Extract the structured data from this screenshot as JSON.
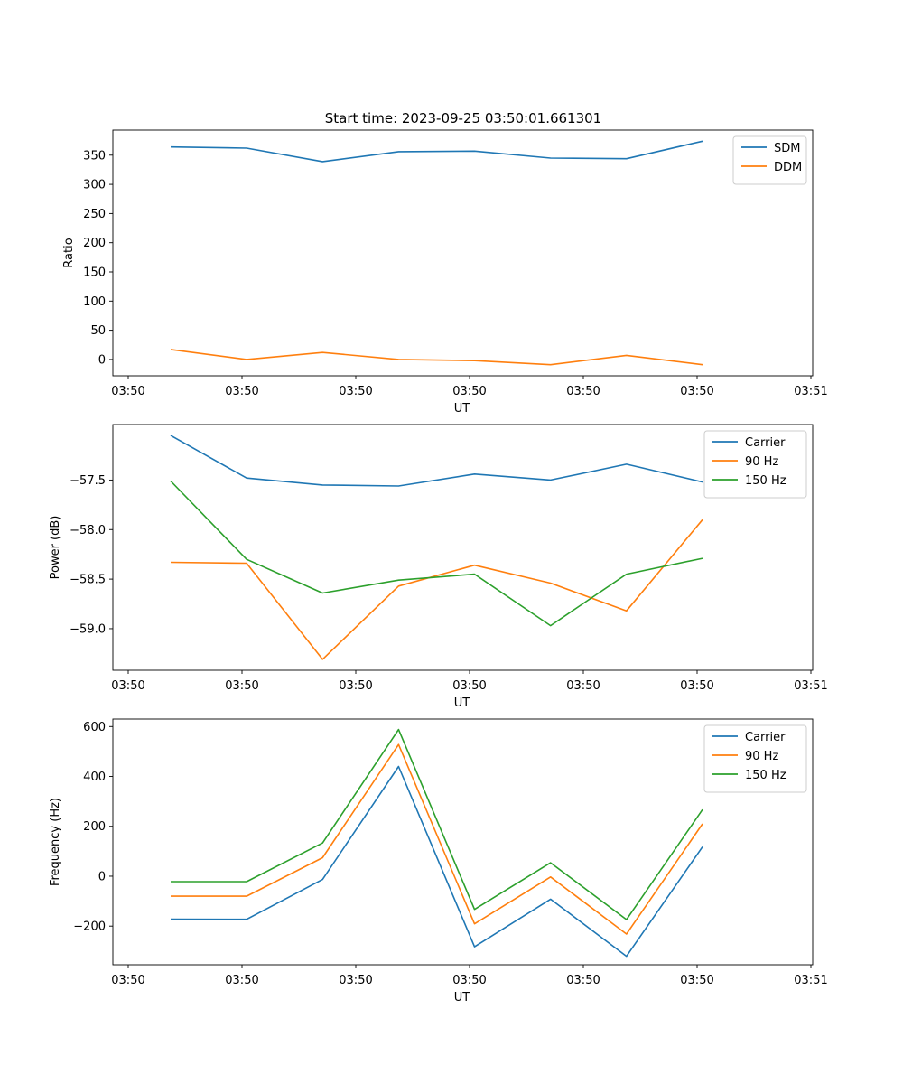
{
  "figure": {
    "title": "Start time: 2023-09-25 03:50:01.661301"
  },
  "chart_data": [
    {
      "type": "line",
      "xlabel": "UT",
      "ylabel": "Ratio",
      "x_tick_labels": [
        "03:50",
        "03:50",
        "03:50",
        "03:50",
        "03:50",
        "03:50",
        "03:51"
      ],
      "x_positions": [
        0,
        1,
        2,
        3,
        4,
        5,
        6,
        7
      ],
      "xlim": [
        -0.76,
        8.45
      ],
      "ylim": [
        -28,
        393
      ],
      "yticks": [
        0,
        50,
        100,
        150,
        200,
        250,
        300,
        350
      ],
      "ytick_labels": [
        "0",
        "50",
        "100",
        "150",
        "200",
        "250",
        "300",
        "350"
      ],
      "legend": "top-right",
      "series": [
        {
          "name": "SDM",
          "color": "#1f77b4",
          "values": [
            364,
            362,
            339,
            356,
            357,
            345,
            344,
            374
          ]
        },
        {
          "name": "DDM",
          "color": "#ff7f0e",
          "values": [
            17,
            0,
            12,
            0,
            -2,
            -9,
            7,
            -9
          ]
        }
      ]
    },
    {
      "type": "line",
      "xlabel": "UT",
      "ylabel": "Power (dB)",
      "x_tick_labels": [
        "03:50",
        "03:50",
        "03:50",
        "03:50",
        "03:50",
        "03:50",
        "03:51"
      ],
      "x_positions": [
        0,
        1,
        2,
        3,
        4,
        5,
        6,
        7
      ],
      "xlim": [
        -0.76,
        8.45
      ],
      "ylim": [
        -59.42,
        -56.94
      ],
      "yticks": [
        -59.0,
        -58.5,
        -58.0,
        -57.5
      ],
      "ytick_labels": [
        "−59.0",
        "−58.5",
        "−58.0",
        "−57.5"
      ],
      "legend": "top-right",
      "series": [
        {
          "name": "Carrier",
          "color": "#1f77b4",
          "values": [
            -57.05,
            -57.48,
            -57.55,
            -57.56,
            -57.44,
            -57.5,
            -57.34,
            -57.52
          ]
        },
        {
          "name": "90 Hz",
          "color": "#ff7f0e",
          "values": [
            -58.33,
            -58.34,
            -59.31,
            -58.57,
            -58.36,
            -58.54,
            -58.82,
            -57.9
          ]
        },
        {
          "name": "150 Hz",
          "color": "#2ca02c",
          "values": [
            -57.51,
            -58.3,
            -58.64,
            -58.51,
            -58.45,
            -58.97,
            -58.45,
            -58.29
          ]
        }
      ]
    },
    {
      "type": "line",
      "xlabel": "UT",
      "ylabel": "Frequency (Hz)",
      "x_tick_labels": [
        "03:50",
        "03:50",
        "03:50",
        "03:50",
        "03:50",
        "03:50",
        "03:51"
      ],
      "x_positions": [
        0,
        1,
        2,
        3,
        4,
        5,
        6,
        7
      ],
      "xlim": [
        -0.76,
        8.45
      ],
      "ylim": [
        -355,
        630
      ],
      "yticks": [
        -200,
        0,
        200,
        400,
        600
      ],
      "ytick_labels": [
        "−200",
        "0",
        "200",
        "400",
        "600"
      ],
      "legend": "top-right",
      "series": [
        {
          "name": "Carrier",
          "color": "#1f77b4",
          "values": [
            -172,
            -173,
            -13,
            440,
            -283,
            -92,
            -321,
            118
          ]
        },
        {
          "name": "90 Hz",
          "color": "#ff7f0e",
          "values": [
            -80,
            -80,
            74,
            528,
            -191,
            -3,
            -232,
            210
          ]
        },
        {
          "name": "150 Hz",
          "color": "#2ca02c",
          "values": [
            -22,
            -22,
            133,
            588,
            -133,
            54,
            -174,
            267
          ]
        }
      ]
    }
  ]
}
